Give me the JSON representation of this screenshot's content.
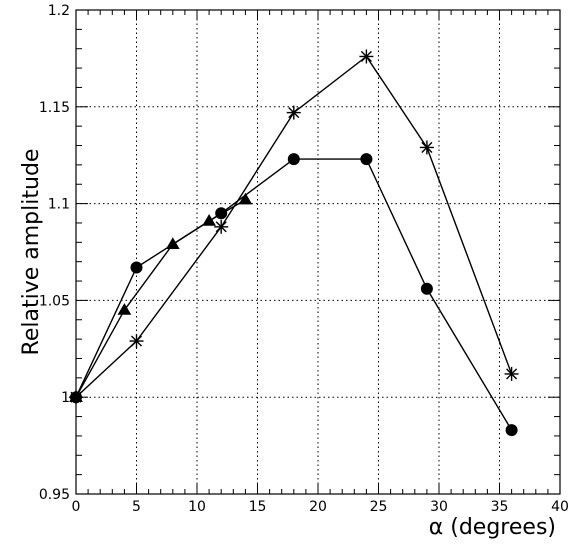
{
  "chart_data": {
    "type": "line",
    "title": "",
    "xlabel": "α (degrees)",
    "ylabel": "Relative amplitude",
    "xlim": [
      0,
      40
    ],
    "ylim": [
      0.95,
      1.2
    ],
    "xticks": [
      0,
      5,
      10,
      15,
      20,
      25,
      30,
      35,
      40
    ],
    "yticks": [
      0.95,
      1,
      1.05,
      1.1,
      1.15,
      1.2
    ],
    "xtick_labels": [
      "0",
      "5",
      "10",
      "15",
      "20",
      "25",
      "30",
      "35",
      "40"
    ],
    "ytick_labels": [
      "0.95",
      "1",
      "1.05",
      "1.1",
      "1.15",
      "1.2"
    ],
    "grid": true,
    "legend": "none",
    "series": [
      {
        "marker": "circle",
        "x": [
          0,
          5,
          12,
          18,
          24,
          29,
          36
        ],
        "y": [
          1.0,
          1.067,
          1.095,
          1.123,
          1.123,
          1.056,
          0.983
        ]
      },
      {
        "marker": "triangle",
        "x": [
          0,
          4,
          8,
          11,
          14
        ],
        "y": [
          1.0,
          1.045,
          1.079,
          1.091,
          1.102
        ]
      },
      {
        "marker": "star",
        "x": [
          0,
          5,
          12,
          18,
          24,
          29,
          36
        ],
        "y": [
          1.0,
          1.029,
          1.088,
          1.147,
          1.176,
          1.129,
          1.012
        ]
      }
    ]
  }
}
